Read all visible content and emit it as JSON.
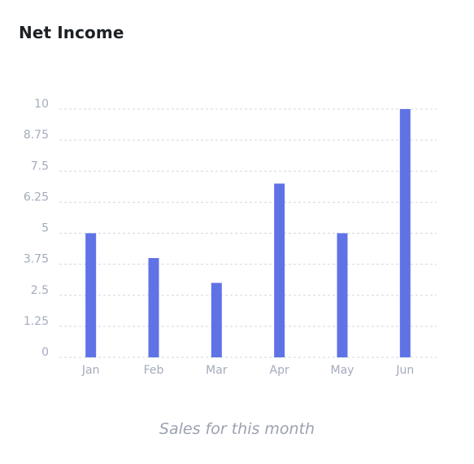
{
  "title": "Net Income",
  "caption": "Sales for this month",
  "colors": {
    "bar": "#5f73e6",
    "grid": "#d3d7de",
    "tick": "#a3abbc",
    "title": "#1d2125",
    "caption": "#9aa1b0"
  },
  "chart_data": {
    "type": "bar",
    "title": "Net Income",
    "xlabel": "",
    "ylabel": "",
    "categories": [
      "Jan",
      "Feb",
      "Mar",
      "Apr",
      "May",
      "Jun"
    ],
    "values": [
      5,
      4,
      3,
      7,
      5,
      10
    ],
    "ylim": [
      0,
      10
    ],
    "yticks": [
      "0",
      "1.25",
      "2.5",
      "3.75",
      "5",
      "6.25",
      "7.5",
      "8.75",
      "10"
    ],
    "grid": true,
    "legend": "none"
  }
}
